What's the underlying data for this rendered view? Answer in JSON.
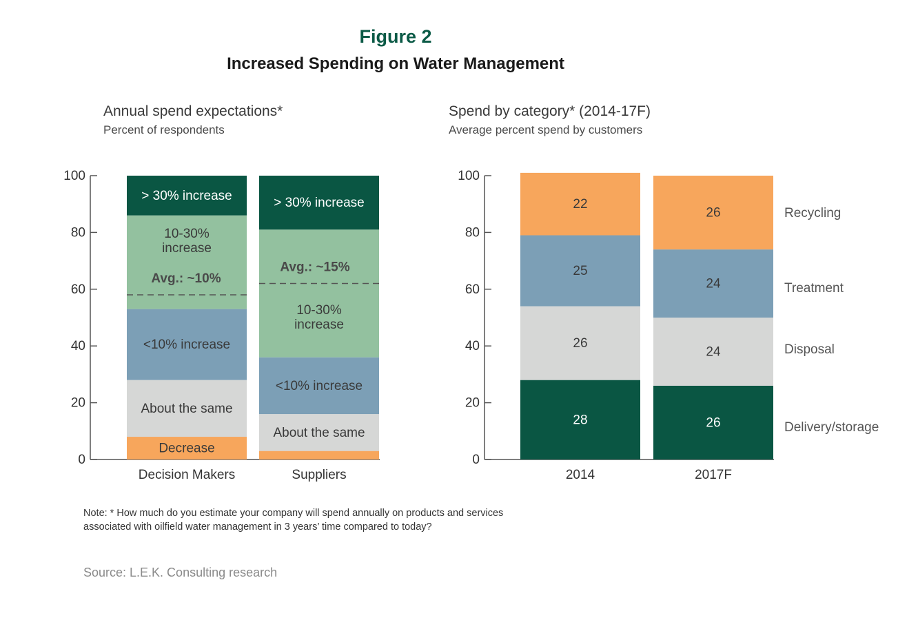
{
  "figure_label": "Figure 2",
  "figure_title": "Increased Spending on Water Management",
  "colors": {
    "dark_green": "#0a5643",
    "light_green": "#93c19f",
    "blue": "#7c9fb6",
    "gray": "#d6d7d6",
    "orange": "#f7a65c",
    "title_green": "#0b5a46"
  },
  "note_line1": "Note: * How much do you estimate your company will spend annually on products and services",
  "note_line2": "associated with oilfield water management in 3 years’ time compared to today?",
  "source": "Source: L.E.K. Consulting research",
  "chart_data": [
    {
      "type": "bar",
      "stacked": true,
      "title": "Annual spend expectations*",
      "subtitle": "Percent of respondents",
      "ylim": [
        0,
        100
      ],
      "yticks": [
        "0",
        "20",
        "40",
        "60",
        "80",
        "100"
      ],
      "categories": [
        "Decision Makers",
        "Suppliers"
      ],
      "series": [
        {
          "name": "Decrease",
          "color": "#f7a65c",
          "values": [
            8,
            3
          ],
          "labels": [
            "Decrease",
            ""
          ]
        },
        {
          "name": "About the same",
          "color": "#d6d7d6",
          "values": [
            20,
            13
          ],
          "labels": [
            "About the same",
            "About the same"
          ]
        },
        {
          "name": "<10% increase",
          "color": "#7c9fb6",
          "values": [
            25,
            20
          ],
          "labels": [
            "<10% increase",
            "<10% increase"
          ]
        },
        {
          "name": "10-30% increase",
          "color": "#93c19f",
          "values": [
            33,
            45
          ],
          "labels": [
            "10-30%\nincrease",
            "10-30%\nincrease"
          ]
        },
        {
          "name": "> 30% increase",
          "color": "#0a5643",
          "values": [
            14,
            19
          ],
          "labels": [
            "> 30% increase",
            "> 30% increase"
          ]
        }
      ],
      "averages": [
        {
          "category": "Decision Makers",
          "label": "Avg.: ~10%",
          "y": 58
        },
        {
          "category": "Suppliers",
          "label": "Avg.: ~15%",
          "y": 62
        }
      ]
    },
    {
      "type": "bar",
      "stacked": true,
      "title": "Spend by category* (2014-17F)",
      "subtitle": "Average percent spend by customers",
      "ylim": [
        0,
        100
      ],
      "yticks": [
        "0",
        "20",
        "40",
        "60",
        "80",
        "100"
      ],
      "categories": [
        "2014",
        "2017F"
      ],
      "series": [
        {
          "name": "Delivery/storage",
          "color": "#0a5643",
          "values": [
            28,
            26
          ]
        },
        {
          "name": "Disposal",
          "color": "#d6d7d6",
          "values": [
            26,
            24
          ]
        },
        {
          "name": "Treatment",
          "color": "#7c9fb6",
          "values": [
            25,
            24
          ]
        },
        {
          "name": "Recycling",
          "color": "#f7a65c",
          "values": [
            22,
            26
          ]
        }
      ]
    }
  ]
}
